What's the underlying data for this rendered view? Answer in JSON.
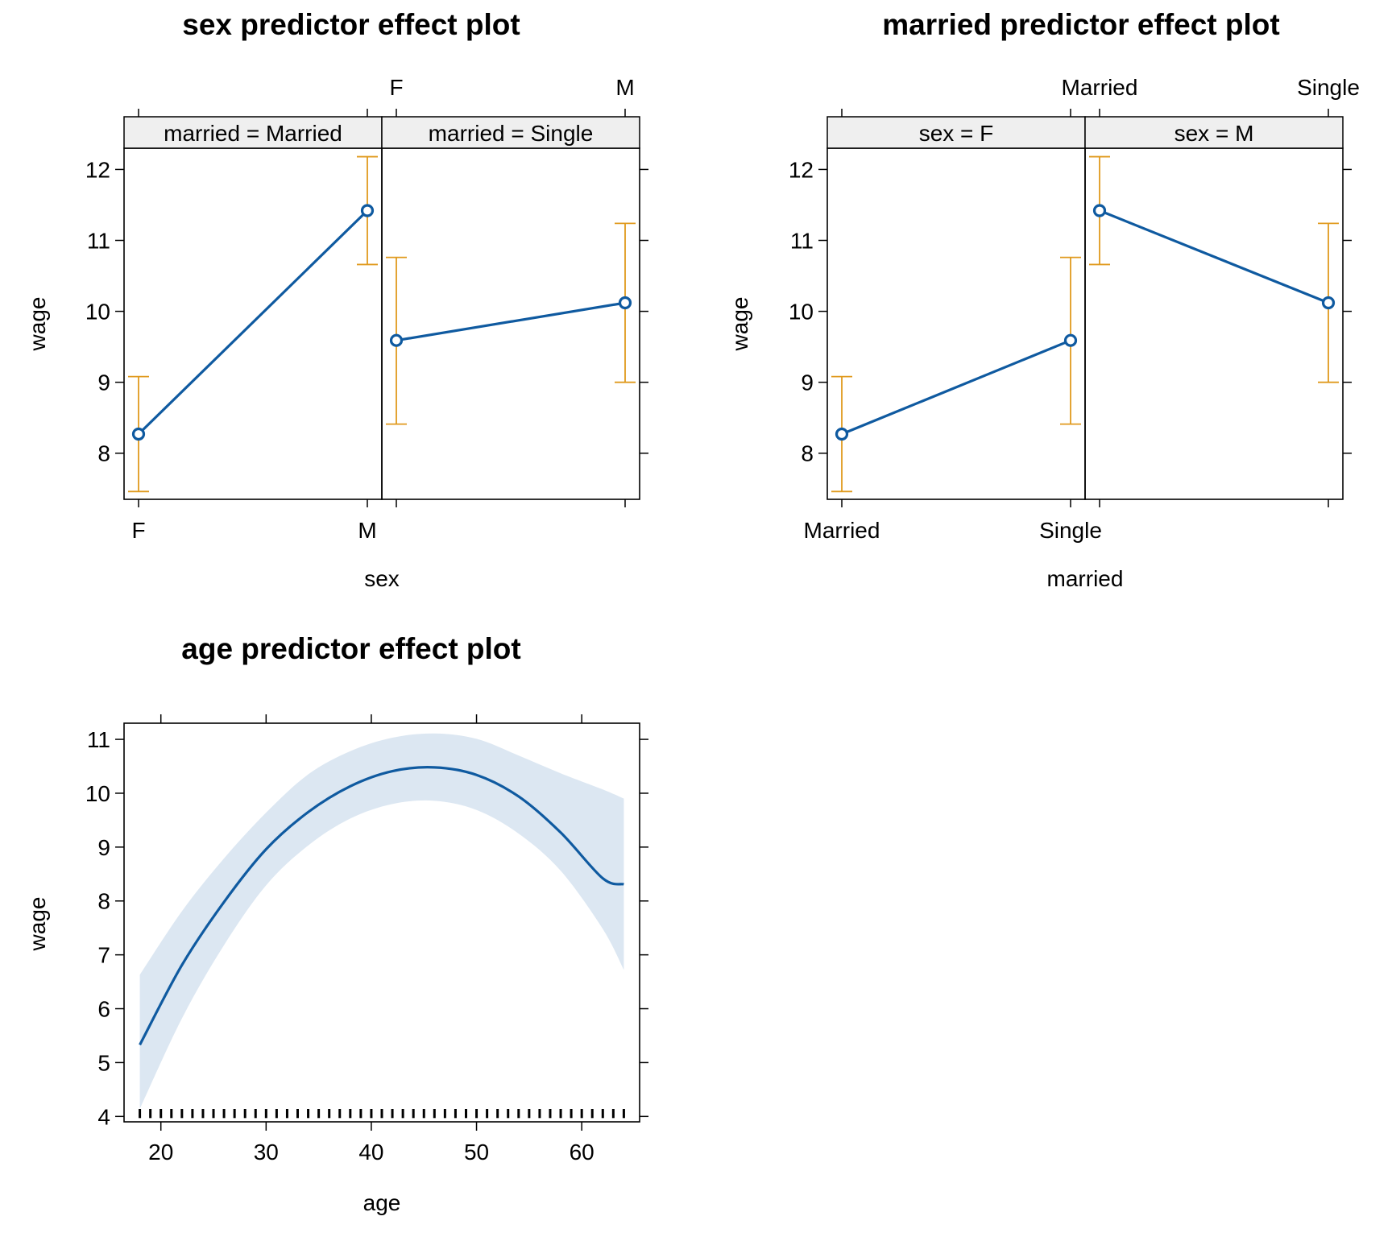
{
  "colors": {
    "line": "#0f5aa0",
    "ci": "#e09a1e",
    "band": "#dce7f2",
    "strip": "#efefef",
    "frame": "#000000"
  },
  "chart_data": [
    {
      "type": "line",
      "title": "sex predictor effect plot",
      "xlabel": "sex",
      "ylabel": "wage",
      "ylim": [
        7.35,
        12.3
      ],
      "yticks": [
        8,
        9,
        10,
        11,
        12
      ],
      "categories": [
        "F",
        "M"
      ],
      "panels": [
        {
          "strip": "married = Married",
          "values": [
            8.27,
            11.42
          ],
          "lower": [
            7.46,
            10.66
          ],
          "upper": [
            9.08,
            12.18
          ]
        },
        {
          "strip": "married = Single",
          "values": [
            9.59,
            10.12
          ],
          "lower": [
            8.41,
            9.0
          ],
          "upper": [
            10.76,
            11.24
          ]
        }
      ]
    },
    {
      "type": "line",
      "title": "married predictor effect plot",
      "xlabel": "married",
      "ylabel": "wage",
      "ylim": [
        7.35,
        12.3
      ],
      "yticks": [
        8,
        9,
        10,
        11,
        12
      ],
      "categories": [
        "Married",
        "Single"
      ],
      "panels": [
        {
          "strip": "sex = F",
          "values": [
            8.27,
            9.59
          ],
          "lower": [
            7.46,
            8.41
          ],
          "upper": [
            9.08,
            10.76
          ]
        },
        {
          "strip": "sex = M",
          "values": [
            11.42,
            10.12
          ],
          "lower": [
            10.66,
            9.0
          ],
          "upper": [
            12.18,
            11.24
          ]
        }
      ]
    },
    {
      "type": "area",
      "title": "age predictor effect plot",
      "xlabel": "age",
      "ylabel": "wage",
      "xlim": [
        16.5,
        65.5
      ],
      "ylim": [
        3.9,
        11.3
      ],
      "xticks": [
        20,
        30,
        40,
        50,
        60
      ],
      "yticks": [
        4,
        5,
        6,
        7,
        8,
        9,
        10,
        11
      ],
      "x": [
        18,
        22,
        26,
        30,
        34,
        38,
        42,
        46,
        50,
        54,
        58,
        62,
        64
      ],
      "fit": [
        5.33,
        6.81,
        7.98,
        8.96,
        9.65,
        10.13,
        10.41,
        10.48,
        10.34,
        9.94,
        9.27,
        8.42,
        8.31
      ],
      "lower": [
        4.14,
        5.82,
        7.18,
        8.29,
        9.03,
        9.53,
        9.8,
        9.86,
        9.69,
        9.25,
        8.56,
        7.48,
        6.72
      ],
      "upper": [
        6.63,
        7.81,
        8.79,
        9.64,
        10.35,
        10.78,
        11.03,
        11.11,
        11.01,
        10.7,
        10.37,
        10.07,
        9.9
      ],
      "rug": [
        18,
        19,
        20,
        21,
        22,
        23,
        24,
        25,
        26,
        27,
        28,
        29,
        30,
        31,
        32,
        33,
        34,
        35,
        36,
        37,
        38,
        39,
        40,
        41,
        42,
        43,
        44,
        45,
        46,
        47,
        48,
        49,
        50,
        51,
        52,
        53,
        54,
        55,
        56,
        57,
        58,
        59,
        60,
        61,
        62,
        63,
        64
      ]
    }
  ]
}
